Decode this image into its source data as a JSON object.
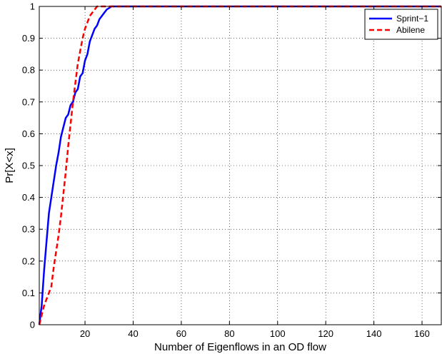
{
  "chart_data": {
    "type": "line",
    "title": "",
    "xlabel": "Number of Eigenflows in an OD flow",
    "ylabel": "Pr[X<x]",
    "xlim": [
      1,
      168
    ],
    "ylim": [
      0,
      1
    ],
    "xticks": [
      20,
      40,
      60,
      80,
      100,
      120,
      140,
      160
    ],
    "yticks": [
      0,
      0.1,
      0.2,
      0.3,
      0.4,
      0.5,
      0.6,
      0.7,
      0.8,
      0.9,
      1
    ],
    "grid": true,
    "legend_position": "top-right",
    "series": [
      {
        "name": "Sprint−1",
        "color": "#0000ff",
        "style": "solid",
        "x": [
          1,
          2,
          3,
          4,
          5,
          6,
          7,
          8,
          9,
          10,
          11,
          12,
          13,
          14,
          15,
          16,
          17,
          18,
          19,
          20,
          21,
          22,
          23,
          24,
          25,
          26,
          27,
          28,
          29,
          30,
          31,
          32,
          33,
          40,
          60,
          80,
          100,
          120,
          140,
          168
        ],
        "y": [
          0,
          0.06,
          0.17,
          0.26,
          0.35,
          0.4,
          0.45,
          0.5,
          0.54,
          0.59,
          0.62,
          0.65,
          0.66,
          0.69,
          0.7,
          0.73,
          0.74,
          0.78,
          0.79,
          0.83,
          0.85,
          0.89,
          0.91,
          0.93,
          0.94,
          0.96,
          0.97,
          0.98,
          0.99,
          0.995,
          1,
          1,
          1,
          1,
          1,
          1,
          1,
          1,
          1,
          1
        ]
      },
      {
        "name": "Abilene",
        "color": "#ff0000",
        "style": "dashed",
        "x": [
          1,
          2,
          3,
          4,
          5,
          6,
          7,
          8,
          9,
          10,
          11,
          12,
          13,
          14,
          15,
          16,
          17,
          18,
          19,
          20,
          21,
          22,
          23,
          24,
          25,
          26,
          27,
          28,
          29,
          30,
          31,
          32,
          33,
          40,
          60,
          80,
          100,
          120,
          140,
          168
        ],
        "y": [
          0,
          0.03,
          0.06,
          0.08,
          0.1,
          0.12,
          0.18,
          0.23,
          0.28,
          0.34,
          0.41,
          0.48,
          0.56,
          0.63,
          0.7,
          0.76,
          0.82,
          0.86,
          0.9,
          0.93,
          0.95,
          0.97,
          0.98,
          0.99,
          1,
          1,
          1,
          1,
          1,
          1,
          1,
          1,
          1,
          1,
          1,
          1,
          1,
          1,
          1,
          1
        ]
      }
    ]
  }
}
